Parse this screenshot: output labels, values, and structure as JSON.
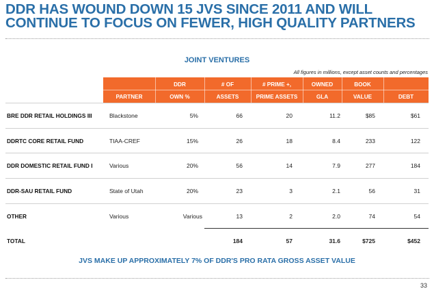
{
  "title": {
    "line1": "DDR HAS WOUND DOWN 15 JVS SINCE 2011 AND WILL",
    "line2": "CONTINUE TO FOCUS ON FEWER, HIGH QUALITY PARTNERS"
  },
  "section_title": "JOINT VENTURES",
  "note": "All figures in millions, except asset counts and percentages",
  "headers": {
    "partner": [
      "",
      "PARTNER"
    ],
    "own": [
      "DDR",
      "OWN %"
    ],
    "assets": [
      "# OF",
      "ASSETS"
    ],
    "prime": [
      "# PRIME +,",
      "PRIME ASSETS"
    ],
    "gla": [
      "OWNED",
      "GLA"
    ],
    "value": [
      "BOOK",
      "VALUE"
    ],
    "debt": [
      "",
      "DEBT"
    ]
  },
  "rows": [
    {
      "name": "BRE DDR RETAIL HOLDINGS III",
      "partner": "Blackstone",
      "own": "5%",
      "assets": "66",
      "prime": "20",
      "gla": "11.2",
      "value": "$85",
      "debt": "$61"
    },
    {
      "name": "DDRTC CORE RETAIL FUND",
      "partner": "TIAA-CREF",
      "own": "15%",
      "assets": "26",
      "prime": "18",
      "gla": "8.4",
      "value": "233",
      "debt": "122"
    },
    {
      "name": "DDR DOMESTIC RETAIL FUND I",
      "partner": "Various",
      "own": "20%",
      "assets": "56",
      "prime": "14",
      "gla": "7.9",
      "value": "277",
      "debt": "184"
    },
    {
      "name": "DDR-SAU RETAIL FUND",
      "partner": "State of Utah",
      "own": "20%",
      "assets": "23",
      "prime": "3",
      "gla": "2.1",
      "value": "56",
      "debt": "31"
    },
    {
      "name": "OTHER",
      "partner": "Various",
      "own": "Various",
      "assets": "13",
      "prime": "2",
      "gla": "2.0",
      "value": "74",
      "debt": "54"
    }
  ],
  "total": {
    "name": "TOTAL",
    "assets": "184",
    "prime": "57",
    "gla": "31.6",
    "value": "$725",
    "debt": "$452"
  },
  "footer_note": "JVS MAKE UP APPROXIMATELY 7% OF DDR'S PRO RATA GROSS ASSET VALUE",
  "page_number": "33"
}
